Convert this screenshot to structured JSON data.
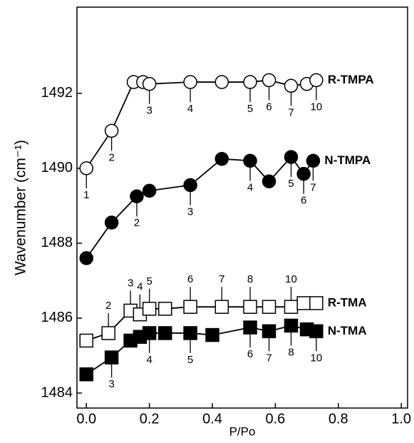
{
  "chart_data": {
    "type": "line",
    "xlabel": "P/Po",
    "ylabel": "Wavenumber (cm⁻¹)",
    "xlim": [
      -0.03,
      1.02
    ],
    "ylim": [
      1483.6,
      1494.3
    ],
    "xticks": [
      {
        "value": 0,
        "label": "0.0"
      },
      0.2,
      0.4,
      0.6,
      0.8,
      {
        "value": 1,
        "label": "1.0"
      }
    ],
    "yticks": [
      1484,
      1486,
      1488,
      1490,
      1492
    ],
    "series": [
      {
        "name": "R-TMPA",
        "color": "#000000",
        "marker": "circle",
        "filled": false,
        "x": [
          0,
          0.08,
          0.15,
          0.18,
          0.2,
          0.33,
          0.43,
          0.52,
          0.58,
          0.65,
          0.7,
          0.73
        ],
        "values": [
          1490,
          1491,
          1492.3,
          1492.3,
          1492.25,
          1492.3,
          1492.3,
          1492.3,
          1492.35,
          1492.2,
          1492.25,
          1492.35
        ],
        "annotations": [
          {
            "text": "1",
            "point": 0,
            "side": "below"
          },
          {
            "text": "2",
            "point": 1,
            "side": "below"
          },
          {
            "text": "3",
            "point": 4,
            "side": "below"
          },
          {
            "text": "4",
            "point": 5,
            "side": "below"
          },
          {
            "text": "5",
            "point": 7,
            "side": "below"
          },
          {
            "text": "6",
            "point": 8,
            "side": "below"
          },
          {
            "text": "7",
            "point": 9,
            "side": "below"
          },
          {
            "text": "10",
            "point": 11,
            "side": "below"
          }
        ]
      },
      {
        "name": "N-TMPA",
        "color": "#000000",
        "marker": "circle",
        "filled": true,
        "x": [
          0,
          0.08,
          0.16,
          0.2,
          0.33,
          0.43,
          0.52,
          0.58,
          0.65,
          0.69,
          0.72
        ],
        "values": [
          1487.6,
          1488.55,
          1489.25,
          1489.4,
          1489.55,
          1490.25,
          1490.2,
          1489.65,
          1490.3,
          1489.85,
          1490.2
        ],
        "annotations": [
          {
            "text": "2",
            "point": 2,
            "side": "below"
          },
          {
            "text": "3",
            "point": 4,
            "side": "below"
          },
          {
            "text": "4",
            "point": 6,
            "side": "below"
          },
          {
            "text": "5",
            "point": 8,
            "side": "below"
          },
          {
            "text": "6",
            "point": 9,
            "side": "below"
          },
          {
            "text": "7",
            "point": 10,
            "side": "below"
          }
        ]
      },
      {
        "name": "R-TMA",
        "color": "#000000",
        "marker": "square",
        "filled": false,
        "x": [
          0,
          0.07,
          0.14,
          0.17,
          0.2,
          0.25,
          0.33,
          0.43,
          0.52,
          0.58,
          0.65,
          0.69,
          0.73
        ],
        "values": [
          1485.4,
          1485.6,
          1486.2,
          1486.1,
          1486.25,
          1486.25,
          1486.3,
          1486.3,
          1486.3,
          1486.3,
          1486.3,
          1486.4,
          1486.4
        ],
        "annotations": [
          {
            "text": "2",
            "point": 1,
            "side": "above"
          },
          {
            "text": "3",
            "point": 2,
            "side": "above"
          },
          {
            "text": "4",
            "point": 3,
            "side": "above"
          },
          {
            "text": "5",
            "point": 4,
            "side": "above"
          },
          {
            "text": "6",
            "point": 6,
            "side": "above"
          },
          {
            "text": "7",
            "point": 7,
            "side": "above"
          },
          {
            "text": "8",
            "point": 8,
            "side": "above"
          },
          {
            "text": "10",
            "point": 10,
            "side": "above"
          }
        ]
      },
      {
        "name": "N-TMA",
        "color": "#000000",
        "marker": "square",
        "filled": true,
        "x": [
          0,
          0.08,
          0.14,
          0.17,
          0.2,
          0.25,
          0.33,
          0.4,
          0.52,
          0.58,
          0.65,
          0.7,
          0.73
        ],
        "values": [
          1484.5,
          1484.95,
          1485.4,
          1485.5,
          1485.6,
          1485.6,
          1485.6,
          1485.55,
          1485.75,
          1485.65,
          1485.8,
          1485.7,
          1485.65
        ],
        "annotations": [
          {
            "text": "3",
            "point": 1,
            "side": "below"
          },
          {
            "text": "4",
            "point": 4,
            "side": "below"
          },
          {
            "text": "5",
            "point": 6,
            "side": "below"
          },
          {
            "text": "6",
            "point": 8,
            "side": "below"
          },
          {
            "text": "7",
            "point": 9,
            "side": "below"
          },
          {
            "text": "8",
            "point": 10,
            "side": "below"
          },
          {
            "text": "10",
            "point": 12,
            "side": "below"
          }
        ]
      }
    ]
  }
}
